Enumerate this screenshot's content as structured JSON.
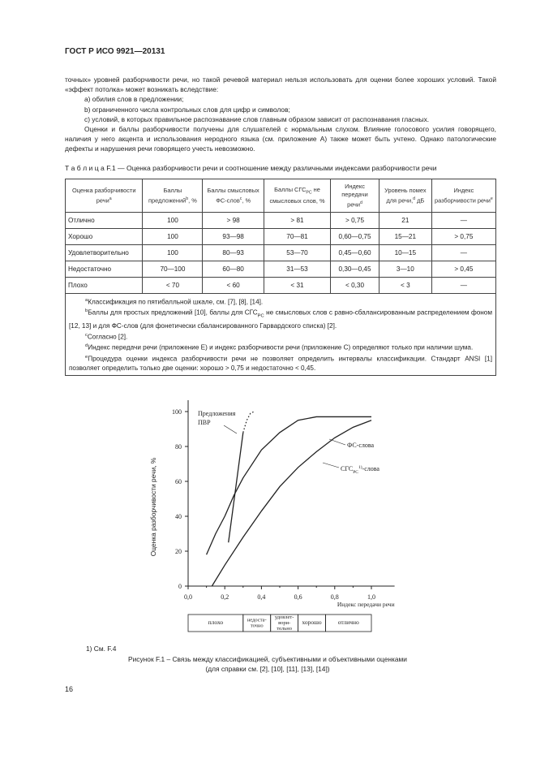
{
  "header": {
    "title": "ГОСТ Р ИСО 9921—20131"
  },
  "body": {
    "paragraphs": [
      "точных» уровней разборчивости речи, но такой речевой материал нельзя использовать для оценки более хороших условий. Такой «эффект потолка» может возникать вследствие:",
      "a) обилия слов в предложении;",
      "b) ограниченного числа контрольных слов для цифр и символов;",
      "c) условий, в которых правильное распознавание слов главным образом зависит от распознавания гласных.",
      "Оценки и баллы разборчивости получены для слушателей с нормальным слухом. Влияние голосового уси­лия говорящего, наличия у него акцента и использования неродного языка (см. приложение А) также может быть учтено. Однако патологические дефекты и нарушения речи говорящего учесть невозможно."
    ]
  },
  "table": {
    "caption_label": "Т а б л и ц а",
    "caption": "F.1 — Оценка разборчивости речи и соотношение между различными индексами разборчивости речи",
    "header": [
      {
        "text": "Оценка разборчивости речи",
        "sup": "a"
      },
      {
        "text": "Баллы предложений",
        "sup": "b",
        "after": ", %"
      },
      {
        "text": "Баллы смысловых ФС-слов",
        "sup": "c",
        "after": ", %"
      },
      {
        "text": "Баллы СГС",
        "sub": "PC",
        "after": " не смысловых слов, %"
      },
      {
        "text": "Индекс передачи речи",
        "sup": "d"
      },
      {
        "text": "Уровень помех для речи,",
        "sup": "d",
        "after": " дБ"
      },
      {
        "text": "Индекс разборчивости речи",
        "sup": "e"
      }
    ],
    "rows": [
      [
        "Отлично",
        "100",
        "> 98",
        "> 81",
        "> 0,75",
        "21",
        "—"
      ],
      [
        "Хорошо",
        "100",
        "93—98",
        "70—81",
        "0,60—0,75",
        "15—21",
        "> 0,75"
      ],
      [
        "Удовлетворительно",
        "100",
        "80—93",
        "53—70",
        "0,45—0,60",
        "10—15",
        "—"
      ],
      [
        "Недостаточно",
        "70—100",
        "60—80",
        "31—53",
        "0,30—0,45",
        "3—10",
        "> 0,45"
      ],
      [
        "Плохо",
        "< 70",
        "< 60",
        "< 31",
        "< 0,30",
        "< 3",
        "—"
      ]
    ],
    "footnotes": [
      {
        "mark": "a",
        "text": "Классификация по пятибалльной шкале, см. [7], [8], [14]."
      },
      {
        "mark": "b",
        "text": "Баллы для простых предложений [10], баллы для СГС",
        "sub": "PC",
        "after": " не смысловых слов с равно-сбалансированным распределением фоном [12, 13] и для ФС-слов (для фонетически сбалансированного Гарвардского списка) [2]."
      },
      {
        "mark": "c",
        "text": "Согласно [2]."
      },
      {
        "mark": "d",
        "text": "Индекс передачи речи (приложение E) и индекс разборчивости речи (приложение C) определяют только при наличии шума."
      },
      {
        "mark": "e",
        "text": "Процедура оценки индекса разборчивости речи не позволяет определить интервалы классификации. Стандарт ANSI [1] позволяет определить только две оценки: хорошо > 0,75 и недостаточно < 0,45."
      }
    ]
  },
  "figure": {
    "type": "line",
    "x_label": "Индекс передачи речи",
    "y_label": "Оценка разборчивости речи, %",
    "xlim": [
      0,
      1.1
    ],
    "ylim": [
      0,
      100
    ],
    "xticks": [
      {
        "value": 0,
        "label": "0,0"
      },
      {
        "value": 0.2,
        "label": "0,2"
      },
      {
        "value": 0.4,
        "label": "0,4"
      },
      {
        "value": 0.6,
        "label": "0,6"
      },
      {
        "value": 0.8,
        "label": "0,8"
      },
      {
        "value": 1.0,
        "label": "1,0"
      }
    ],
    "yticks": [
      0,
      20,
      40,
      60,
      80,
      100
    ],
    "series": [
      {
        "name": [
          "Предложения",
          "ПВР"
        ],
        "x": [
          0.22,
          0.3
        ],
        "values": [
          25,
          88
        ],
        "extension": {
          "x": [
            0.3,
            0.32,
            0.34,
            0.36
          ],
          "values": [
            88,
            95,
            99,
            100
          ]
        }
      },
      {
        "name": {
          "text": "ФС-слова"
        },
        "x": [
          0.1,
          0.15,
          0.2,
          0.25,
          0.3,
          0.4,
          0.5,
          0.6,
          0.7,
          0.8,
          1.0
        ],
        "values": [
          18,
          30,
          40,
          52,
          62,
          78,
          88,
          95,
          97,
          97,
          97
        ]
      },
      {
        "name": {
          "text": "СГС",
          "sub": "PC",
          "sup": "1)",
          "after": "-слова"
        },
        "x": [
          0.13,
          0.2,
          0.3,
          0.4,
          0.5,
          0.6,
          0.7,
          0.8,
          0.9,
          1.0
        ],
        "values": [
          0,
          12,
          28,
          43,
          57,
          68,
          77,
          85,
          91,
          95
        ]
      }
    ],
    "bands": [
      {
        "label": [
          "плохо"
        ],
        "from": 0,
        "to": 0.3
      },
      {
        "label": [
          "недоста-",
          "точно"
        ],
        "from": 0.3,
        "to": 0.45
      },
      {
        "label": [
          "удовлет-",
          "вори-",
          "тельно"
        ],
        "from": 0.45,
        "to": 0.6
      },
      {
        "label": [
          "хорошо"
        ],
        "from": 0.6,
        "to": 0.75
      },
      {
        "label": [
          "отлично"
        ],
        "from": 0.75,
        "to": 1.0
      }
    ],
    "note": "1) См. F.4",
    "caption": "Рисунок F.1 – Связь между классификацией, субъективными и объективными оценками",
    "caption_ref": "(для справки см. [2], [10], [11], [13], [14])"
  },
  "footer": {
    "page": "16"
  }
}
